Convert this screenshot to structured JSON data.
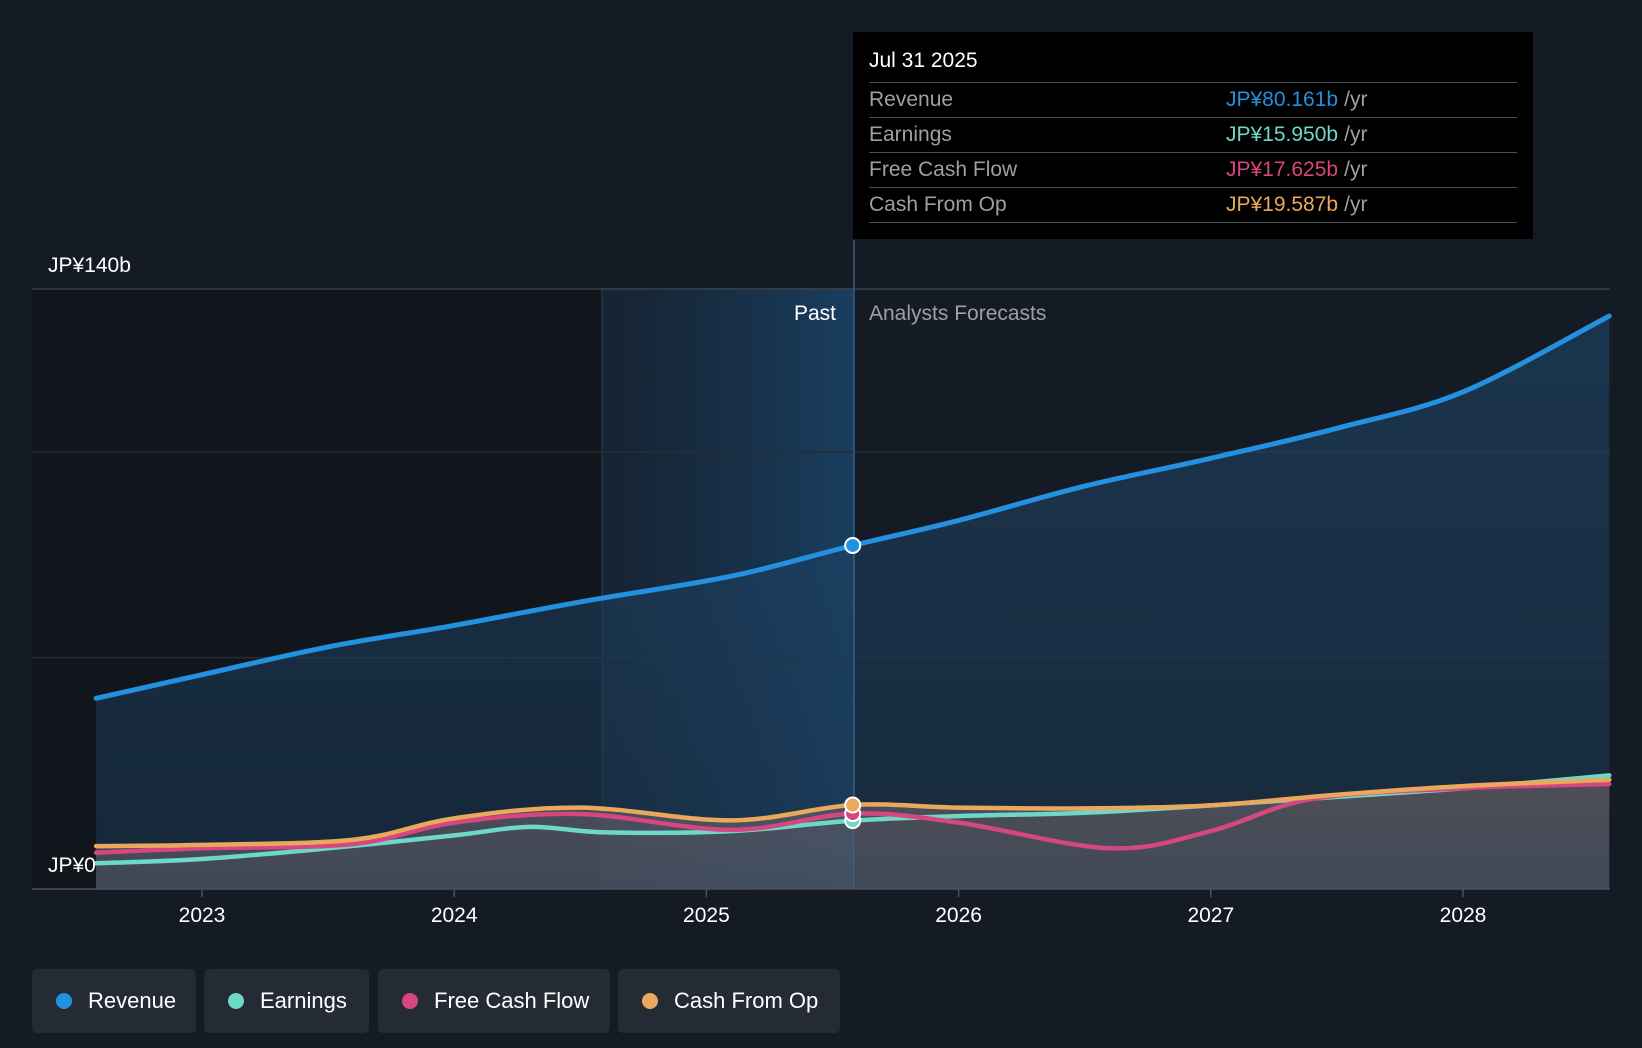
{
  "chart_data": {
    "type": "area",
    "y_axis": {
      "labels": [
        "JP¥140b",
        "JP¥0"
      ],
      "ylim": [
        0,
        140
      ]
    },
    "x_axis": {
      "tick_labels": [
        "2023",
        "2024",
        "2025",
        "2026",
        "2027",
        "2028"
      ]
    },
    "regions": {
      "past_label": "Past",
      "forecast_label": "Analysts Forecasts"
    },
    "series": [
      {
        "name": "Revenue",
        "color": "#2490e0",
        "points": [
          [
            2022.58,
            44.5
          ],
          [
            2023.0,
            50
          ],
          [
            2023.5,
            56.5
          ],
          [
            2024.0,
            61.5
          ],
          [
            2024.5,
            67
          ],
          [
            2025.1,
            73
          ],
          [
            2025.58,
            80.16
          ],
          [
            2026.0,
            86
          ],
          [
            2026.5,
            94
          ],
          [
            2027.0,
            100.5
          ],
          [
            2027.5,
            107.5
          ],
          [
            2028.0,
            116
          ],
          [
            2028.58,
            133.7
          ]
        ]
      },
      {
        "name": "Earnings",
        "color": "#6ed8c8",
        "points": [
          [
            2022.58,
            6
          ],
          [
            2023.0,
            7
          ],
          [
            2023.5,
            9.5
          ],
          [
            2024.0,
            12.5
          ],
          [
            2024.3,
            14.5
          ],
          [
            2024.6,
            13.2
          ],
          [
            2025.1,
            13.5
          ],
          [
            2025.58,
            15.95
          ],
          [
            2026.0,
            17
          ],
          [
            2026.5,
            17.8
          ],
          [
            2027.0,
            19.5
          ],
          [
            2027.5,
            21.5
          ],
          [
            2028.0,
            23.5
          ],
          [
            2028.58,
            26.5
          ]
        ]
      },
      {
        "name": "Free Cash Flow",
        "color": "#d6467f",
        "points": [
          [
            2022.58,
            8.5
          ],
          [
            2023.0,
            9.5
          ],
          [
            2023.6,
            10.5
          ],
          [
            2024.0,
            15.5
          ],
          [
            2024.5,
            17.5
          ],
          [
            2025.1,
            13.8
          ],
          [
            2025.58,
            17.6
          ],
          [
            2026.0,
            15.5
          ],
          [
            2026.6,
            9.5
          ],
          [
            2027.0,
            13.5
          ],
          [
            2027.4,
            21
          ],
          [
            2028.0,
            23.5
          ],
          [
            2028.58,
            24.5
          ]
        ]
      },
      {
        "name": "Cash From Op",
        "color": "#e9a85c",
        "points": [
          [
            2022.58,
            10
          ],
          [
            2023.0,
            10.3
          ],
          [
            2023.6,
            11.5
          ],
          [
            2024.0,
            16.5
          ],
          [
            2024.5,
            19
          ],
          [
            2025.1,
            16
          ],
          [
            2025.58,
            19.59
          ],
          [
            2026.0,
            19
          ],
          [
            2026.5,
            18.8
          ],
          [
            2027.0,
            19.5
          ],
          [
            2027.5,
            22
          ],
          [
            2028.0,
            24
          ],
          [
            2028.58,
            25.5
          ]
        ]
      }
    ]
  },
  "tooltip": {
    "date": "Jul 31 2025",
    "rows": [
      {
        "label": "Revenue",
        "value": "JP¥80.161b",
        "unit": "/yr",
        "color": "#2490e0"
      },
      {
        "label": "Earnings",
        "value": "JP¥15.950b",
        "unit": "/yr",
        "color": "#6ed8c8"
      },
      {
        "label": "Free Cash Flow",
        "value": "JP¥17.625b",
        "unit": "/yr",
        "color": "#d6467f"
      },
      {
        "label": "Cash From Op",
        "value": "JP¥19.587b",
        "unit": "/yr",
        "color": "#e9a85c"
      }
    ]
  },
  "legend": [
    {
      "label": "Revenue",
      "color": "#2490e0"
    },
    {
      "label": "Earnings",
      "color": "#6ed8c8"
    },
    {
      "label": "Free Cash Flow",
      "color": "#d6467f"
    },
    {
      "label": "Cash From Op",
      "color": "#e9a85c"
    }
  ]
}
